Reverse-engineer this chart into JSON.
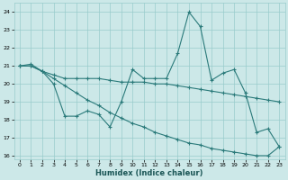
{
  "xlabel": "Humidex (Indice chaleur)",
  "xlim": [
    -0.5,
    23.5
  ],
  "ylim": [
    15.8,
    24.5
  ],
  "yticks": [
    16,
    17,
    18,
    19,
    20,
    21,
    22,
    23,
    24
  ],
  "xticks": [
    0,
    1,
    2,
    3,
    4,
    5,
    6,
    7,
    8,
    9,
    10,
    11,
    12,
    13,
    14,
    15,
    16,
    17,
    18,
    19,
    20,
    21,
    22,
    23
  ],
  "bg_color": "#cce8e8",
  "grid_color": "#99cccc",
  "line_color": "#2a7a7a",
  "line1_y": [
    21.0,
    21.1,
    20.7,
    20.0,
    18.2,
    18.2,
    18.5,
    18.3,
    17.6,
    19.0,
    20.8,
    20.3,
    20.3,
    20.3,
    21.7,
    24.0,
    23.2,
    20.2,
    20.6,
    20.8,
    19.5,
    17.3,
    17.5,
    16.5
  ],
  "line2_y": [
    21.0,
    21.0,
    20.7,
    20.5,
    20.3,
    20.3,
    20.3,
    20.3,
    20.2,
    20.1,
    20.1,
    20.1,
    20.0,
    20.0,
    19.9,
    19.8,
    19.7,
    19.6,
    19.5,
    19.4,
    19.3,
    19.2,
    19.1,
    19.0
  ],
  "line3_y": [
    21.0,
    21.0,
    20.7,
    20.3,
    19.9,
    19.5,
    19.1,
    18.8,
    18.4,
    18.1,
    17.8,
    17.6,
    17.3,
    17.1,
    16.9,
    16.7,
    16.6,
    16.4,
    16.3,
    16.2,
    16.1,
    16.0,
    16.0,
    16.5
  ]
}
